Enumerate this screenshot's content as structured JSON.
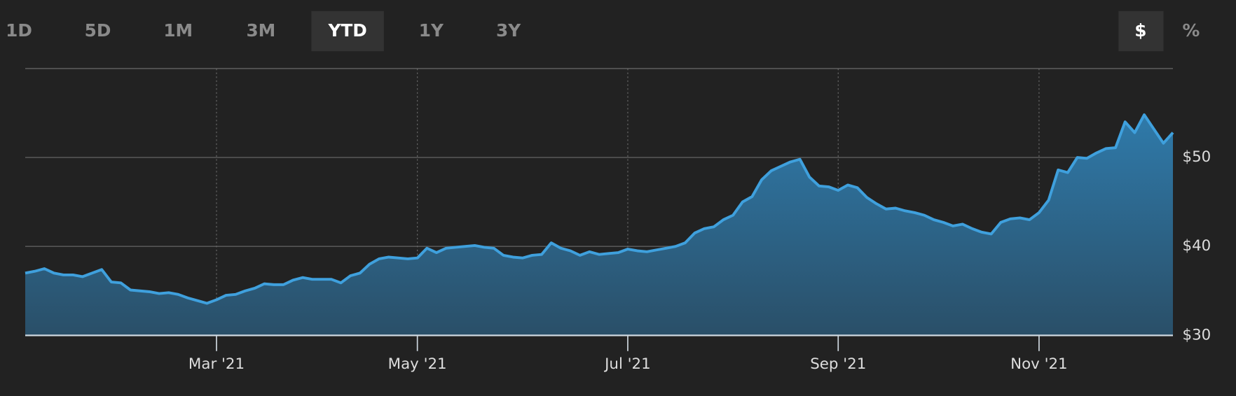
{
  "controls": {
    "ranges": [
      "1D",
      "5D",
      "1M",
      "3M",
      "YTD",
      "1Y",
      "3Y"
    ],
    "selected_range": "YTD",
    "units": [
      "$",
      "%"
    ],
    "selected_unit": "$"
  },
  "chart_data": {
    "type": "area",
    "categories": [
      null,
      null,
      null,
      null,
      null,
      null,
      null,
      null,
      null,
      null,
      null,
      null,
      null,
      null,
      null,
      null,
      null,
      null,
      null,
      null,
      "Mar '21",
      null,
      null,
      null,
      null,
      null,
      null,
      null,
      null,
      null,
      null,
      null,
      null,
      null,
      null,
      null,
      null,
      null,
      null,
      null,
      null,
      "May '21",
      null,
      null,
      null,
      null,
      null,
      null,
      null,
      null,
      null,
      null,
      null,
      null,
      null,
      null,
      null,
      null,
      null,
      null,
      null,
      null,
      null,
      "Jul '21",
      null,
      null,
      null,
      null,
      null,
      null,
      null,
      null,
      null,
      null,
      null,
      null,
      null,
      null,
      null,
      null,
      null,
      null,
      null,
      null,
      null,
      "Sep '21",
      null,
      null,
      null,
      null,
      null,
      null,
      null,
      null,
      null,
      null,
      null,
      null,
      null,
      null,
      null,
      null,
      null,
      null,
      null,
      null,
      "Nov '21",
      null,
      null,
      null,
      null,
      null,
      null,
      null,
      null,
      null,
      null,
      null,
      null,
      null,
      null
    ],
    "series": [
      {
        "color": "#3fa0dd",
        "values": [
          37.0,
          37.2,
          37.5,
          37.0,
          36.8,
          36.8,
          36.6,
          37.0,
          37.4,
          36.0,
          35.9,
          35.1,
          35.0,
          34.9,
          34.7,
          34.8,
          34.6,
          34.2,
          33.9,
          33.6,
          34.0,
          34.5,
          34.6,
          35.0,
          35.3,
          35.8,
          35.7,
          35.7,
          36.2,
          36.5,
          36.3,
          36.3,
          36.3,
          35.9,
          36.7,
          37.0,
          38.0,
          38.6,
          38.8,
          38.7,
          38.6,
          38.7,
          39.8,
          39.3,
          39.8,
          39.9,
          40.0,
          40.1,
          39.9,
          39.8,
          39.0,
          38.8,
          38.7,
          39.0,
          39.1,
          40.4,
          39.8,
          39.5,
          39.0,
          39.4,
          39.1,
          39.2,
          39.3,
          39.7,
          39.5,
          39.4,
          39.6,
          39.8,
          40.0,
          40.4,
          41.5,
          42.0,
          42.2,
          43.0,
          43.5,
          45.0,
          45.6,
          47.5,
          48.5,
          49.0,
          49.5,
          49.8,
          47.8,
          46.8,
          46.7,
          46.3,
          46.9,
          46.6,
          45.5,
          44.8,
          44.2,
          44.3,
          44.0,
          43.8,
          43.5,
          43.0,
          42.7,
          42.3,
          42.5,
          42.0,
          41.6,
          41.4,
          42.7,
          43.1,
          43.2,
          43.0,
          43.8,
          45.2,
          48.6,
          48.3,
          50.0,
          49.9,
          50.5,
          51.0,
          51.1,
          54.0,
          52.8,
          54.8,
          53.2,
          51.6,
          52.8
        ]
      }
    ],
    "ylim": [
      30,
      60
    ],
    "yticks": [
      {
        "value": 30,
        "label": "$30"
      },
      {
        "value": 40,
        "label": "$40"
      },
      {
        "value": 50,
        "label": "$50"
      }
    ],
    "grid": true
  }
}
